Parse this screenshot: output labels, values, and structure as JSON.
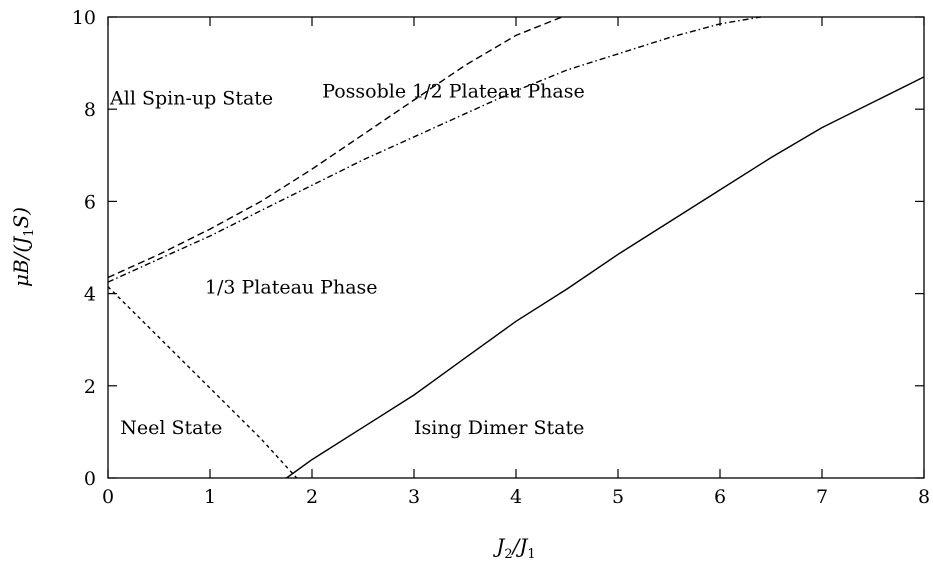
{
  "chart_data": {
    "type": "line",
    "xlim": [
      0,
      8
    ],
    "ylim": [
      0,
      10
    ],
    "x_ticks": [
      0,
      1,
      2,
      3,
      4,
      5,
      6,
      7,
      8
    ],
    "y_ticks": [
      0,
      2,
      4,
      6,
      8,
      10
    ],
    "x_tick_labels": [
      "0",
      "1",
      "2",
      "3",
      "4",
      "5",
      "6",
      "7",
      "8"
    ],
    "y_tick_labels": [
      "0",
      "2",
      "4",
      "6",
      "8",
      "10"
    ],
    "xlabel": {
      "base": "J",
      "sub1": "2",
      "slash": "/J",
      "sub2": "1"
    },
    "ylabel": {
      "pre": "μB/(J",
      "sub": "1",
      "post": "S)"
    },
    "grid": false,
    "series": [
      {
        "style": "dashed",
        "x": [
          0,
          0.5,
          1,
          1.5,
          2,
          2.5,
          3,
          3.5,
          4,
          4.45
        ],
        "y": [
          4.35,
          4.85,
          5.4,
          6.0,
          6.7,
          7.45,
          8.2,
          8.95,
          9.6,
          10.0
        ]
      },
      {
        "style": "dash-dot",
        "x": [
          0,
          0.5,
          1,
          1.5,
          2,
          2.5,
          3,
          3.5,
          4,
          4.5,
          5,
          5.5,
          6,
          6.4
        ],
        "y": [
          4.25,
          4.75,
          5.25,
          5.8,
          6.35,
          6.9,
          7.4,
          7.9,
          8.4,
          8.85,
          9.2,
          9.55,
          9.85,
          10.0
        ]
      },
      {
        "style": "dotted",
        "x": [
          0,
          0.5,
          1,
          1.5,
          1.85
        ],
        "y": [
          4.15,
          3.05,
          1.95,
          0.85,
          0.0
        ]
      },
      {
        "style": "solid",
        "x": [
          1.75,
          2,
          2.5,
          3,
          3.5,
          4,
          4.5,
          5,
          5.5,
          6,
          6.5,
          7,
          7.5,
          8
        ],
        "y": [
          0.0,
          0.4,
          1.1,
          1.8,
          2.6,
          3.4,
          4.1,
          4.85,
          5.55,
          6.25,
          6.95,
          7.6,
          8.15,
          8.7
        ]
      }
    ],
    "annotations": [
      {
        "text": "All Spin-up State",
        "x": 0.02,
        "y": 8.1
      },
      {
        "text": "Possoble 1/2 Plateau Phase",
        "x": 2.1,
        "y": 8.25
      },
      {
        "text": "1/3 Plateau Phase",
        "x": 0.95,
        "y": 4.0
      },
      {
        "text": "Neel State",
        "x": 0.12,
        "y": 0.95
      },
      {
        "text": "Ising Dimer State",
        "x": 3.0,
        "y": 0.95
      }
    ]
  }
}
